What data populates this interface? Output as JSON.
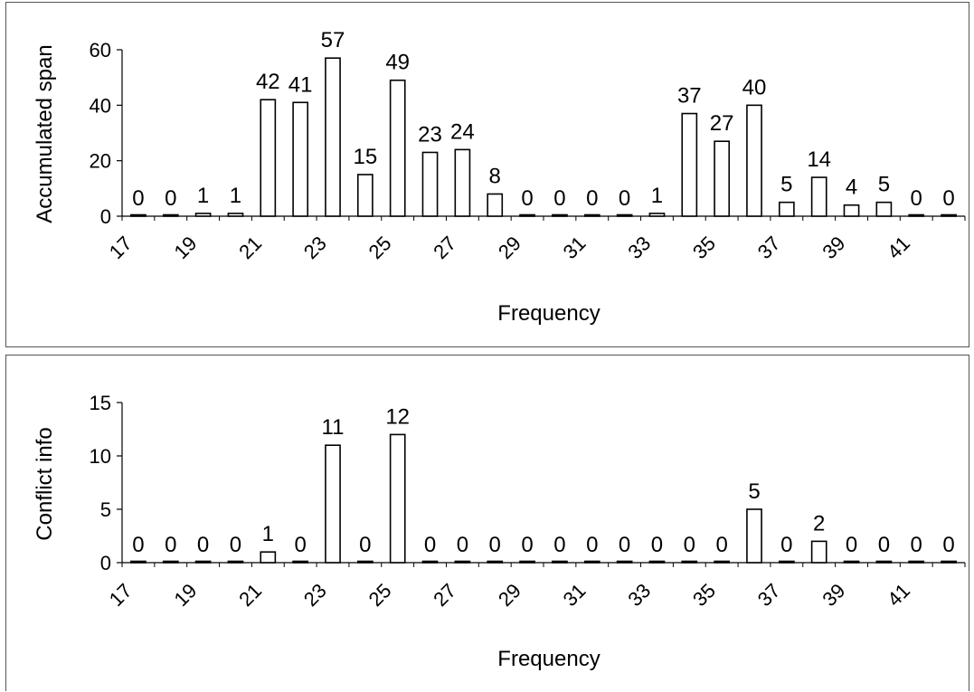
{
  "chart_data": [
    {
      "type": "bar",
      "xlabel": "Frequency",
      "ylabel": "Accumulated span",
      "ylim": [
        0,
        60
      ],
      "yticks": [
        0,
        20,
        40,
        60
      ],
      "x_tick_labels": [
        "17",
        "19",
        "21",
        "23",
        "25",
        "27",
        "29",
        "31",
        "33",
        "35",
        "37",
        "39",
        "41"
      ],
      "categories": [
        17,
        18,
        19,
        20,
        21,
        22,
        23,
        24,
        25,
        26,
        27,
        28,
        29,
        30,
        31,
        32,
        33,
        34,
        35,
        36,
        37,
        38,
        39,
        40,
        41,
        42
      ],
      "values": [
        0,
        0,
        1,
        1,
        42,
        41,
        57,
        15,
        49,
        23,
        24,
        8,
        0,
        0,
        0,
        0,
        1,
        37,
        27,
        40,
        5,
        14,
        4,
        5,
        0,
        0
      ],
      "grid": false,
      "legend": "none"
    },
    {
      "type": "bar",
      "xlabel": "Frequency",
      "ylabel": "Conflict info",
      "ylim": [
        0,
        15
      ],
      "yticks": [
        0,
        5,
        10,
        15
      ],
      "x_tick_labels": [
        "17",
        "19",
        "21",
        "23",
        "25",
        "27",
        "29",
        "31",
        "33",
        "35",
        "37",
        "39",
        "41"
      ],
      "categories": [
        17,
        18,
        19,
        20,
        21,
        22,
        23,
        24,
        25,
        26,
        27,
        28,
        29,
        30,
        31,
        32,
        33,
        34,
        35,
        36,
        37,
        38,
        39,
        40,
        41,
        42
      ],
      "values": [
        0,
        0,
        0,
        0,
        1,
        0,
        11,
        0,
        12,
        0,
        0,
        0,
        0,
        0,
        0,
        0,
        0,
        0,
        0,
        5,
        0,
        2,
        0,
        0,
        0,
        0
      ],
      "grid": false,
      "legend": "none"
    }
  ]
}
